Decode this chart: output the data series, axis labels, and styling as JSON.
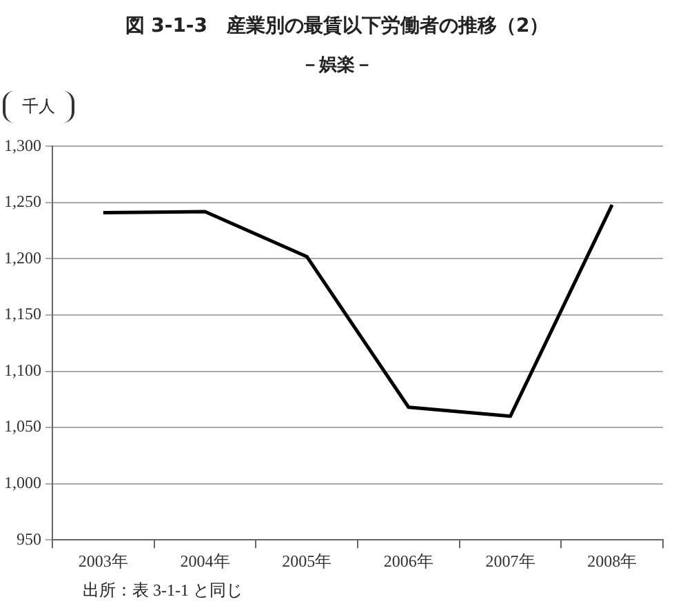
{
  "chart_data": {
    "type": "line",
    "title": "図 3-1-3　産業別の最賃以下労働者の推移（2）",
    "subtitle": "－娯楽－",
    "ylabel": "千人",
    "categories": [
      "2003年",
      "2004年",
      "2005年",
      "2006年",
      "2007年",
      "2008年"
    ],
    "series": [
      {
        "color": "#000000",
        "values": [
          1241,
          1242,
          1202,
          1068,
          1060,
          1248
        ]
      }
    ],
    "ylim": [
      950,
      1300
    ],
    "yticks": [
      {
        "value": 950,
        "label": "950"
      },
      {
        "value": 1000,
        "label": "1,000"
      },
      {
        "value": 1050,
        "label": "1,050"
      },
      {
        "value": 1100,
        "label": "1,100"
      },
      {
        "value": 1150,
        "label": "1,150"
      },
      {
        "value": 1200,
        "label": "1,200"
      },
      {
        "value": 1250,
        "label": "1,250"
      },
      {
        "value": 1300,
        "label": "1,300"
      }
    ],
    "grid": "y",
    "legend": false,
    "marker": "none",
    "line_style": "solid",
    "annotations": [
      "出所：表 3-1-1 と同じ"
    ]
  }
}
